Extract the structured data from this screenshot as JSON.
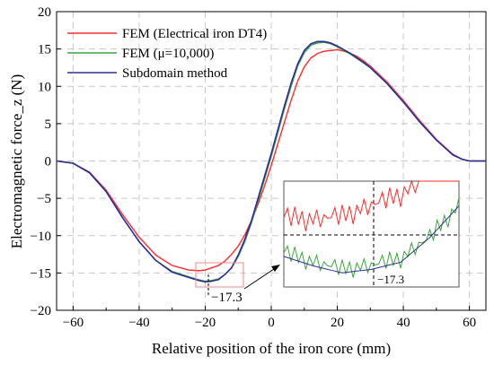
{
  "chart_data": {
    "type": "line",
    "xlabel": "Relative position of the iron core (mm)",
    "ylabel": "Electromagnetic force_z (N)",
    "xlim": [
      -65,
      65
    ],
    "ylim": [
      -20,
      20
    ],
    "xticks": [
      -60,
      -40,
      -20,
      0,
      20,
      40,
      60
    ],
    "yticks": [
      20,
      15,
      10,
      5,
      0,
      -5,
      -10,
      -15,
      -20
    ],
    "grid": true,
    "legend_position": "top-left",
    "colors": {
      "red": "#ff2b2b",
      "green": "#3aa63a",
      "blue": "#2e2e9a"
    },
    "series": [
      {
        "name": "FEM (Electrical iron DT4)",
        "color": "#ff2b2b",
        "x": [
          -65,
          -60,
          -55,
          -50,
          -45,
          -40,
          -35,
          -30,
          -25,
          -22,
          -20,
          -18,
          -16,
          -14,
          -12,
          -10,
          -8,
          -6,
          -4,
          -2,
          0,
          2,
          4,
          6,
          8,
          10,
          12,
          14,
          16,
          18,
          20,
          22,
          24,
          26,
          28,
          30,
          35,
          40,
          45,
          50,
          55,
          58,
          60,
          62,
          65
        ],
        "values": [
          0,
          -0.3,
          -1.5,
          -3.9,
          -7.2,
          -10.2,
          -12.6,
          -14.0,
          -14.6,
          -14.7,
          -14.6,
          -14.3,
          -14.0,
          -13.4,
          -12.5,
          -11.4,
          -9.9,
          -8.0,
          -5.8,
          -3.3,
          -0.6,
          2.3,
          5.2,
          8.1,
          10.7,
          12.6,
          13.8,
          14.4,
          14.7,
          14.8,
          14.9,
          14.7,
          14.4,
          14.0,
          13.4,
          12.7,
          10.6,
          8.1,
          5.4,
          2.9,
          0.9,
          0.2,
          0.0,
          0,
          0
        ]
      },
      {
        "name": "FEM (μ=10,000)",
        "color": "#3aa63a",
        "x": [
          -65,
          -60,
          -55,
          -50,
          -45,
          -40,
          -35,
          -30,
          -25,
          -22,
          -20,
          -18,
          -16,
          -14,
          -12,
          -10,
          -8,
          -6,
          -4,
          -2,
          0,
          2,
          4,
          6,
          8,
          10,
          12,
          14,
          16,
          18,
          20,
          22,
          24,
          26,
          28,
          30,
          35,
          40,
          45,
          50,
          55,
          58,
          60,
          62,
          65
        ],
        "values": [
          0,
          -0.3,
          -1.6,
          -4.1,
          -7.6,
          -10.8,
          -13.3,
          -14.8,
          -15.5,
          -15.9,
          -16.1,
          -16.0,
          -15.8,
          -15.2,
          -14.3,
          -12.8,
          -10.8,
          -8.3,
          -5.4,
          -2.4,
          0.6,
          3.8,
          7.0,
          10.0,
          12.7,
          14.5,
          15.5,
          15.8,
          15.9,
          15.7,
          15.3,
          14.8,
          14.3,
          13.7,
          13.1,
          12.5,
          10.4,
          7.9,
          5.2,
          2.8,
          0.8,
          0.2,
          0.0,
          0,
          0
        ]
      },
      {
        "name": "Subdomain method",
        "color": "#2e2e9a",
        "x": [
          -65,
          -60,
          -55,
          -50,
          -45,
          -40,
          -35,
          -30,
          -25,
          -22,
          -20,
          -18,
          -16,
          -14,
          -12,
          -10,
          -8,
          -6,
          -4,
          -2,
          0,
          2,
          4,
          6,
          8,
          10,
          12,
          14,
          16,
          18,
          20,
          22,
          24,
          26,
          28,
          30,
          35,
          40,
          45,
          50,
          55,
          58,
          60,
          62,
          65
        ],
        "values": [
          0,
          -0.3,
          -1.6,
          -4.1,
          -7.6,
          -10.8,
          -13.3,
          -14.9,
          -15.6,
          -16.0,
          -16.2,
          -16.1,
          -15.9,
          -15.2,
          -14.3,
          -12.6,
          -10.5,
          -8.0,
          -5.0,
          -2.0,
          1.0,
          4.2,
          7.4,
          10.4,
          13.0,
          14.8,
          15.7,
          16.0,
          16.0,
          15.8,
          15.4,
          14.9,
          14.4,
          13.8,
          13.2,
          12.5,
          10.4,
          7.9,
          5.2,
          2.8,
          0.8,
          0.2,
          0.0,
          0,
          0
        ]
      }
    ],
    "annotations": [
      {
        "text": "−17.3",
        "x": -18,
        "y": -17.3
      }
    ],
    "inset": {
      "description_label": "−17.3",
      "x_range": [
        -24,
        -12
      ],
      "y_range": [
        -16.6,
        -13.6
      ]
    }
  }
}
